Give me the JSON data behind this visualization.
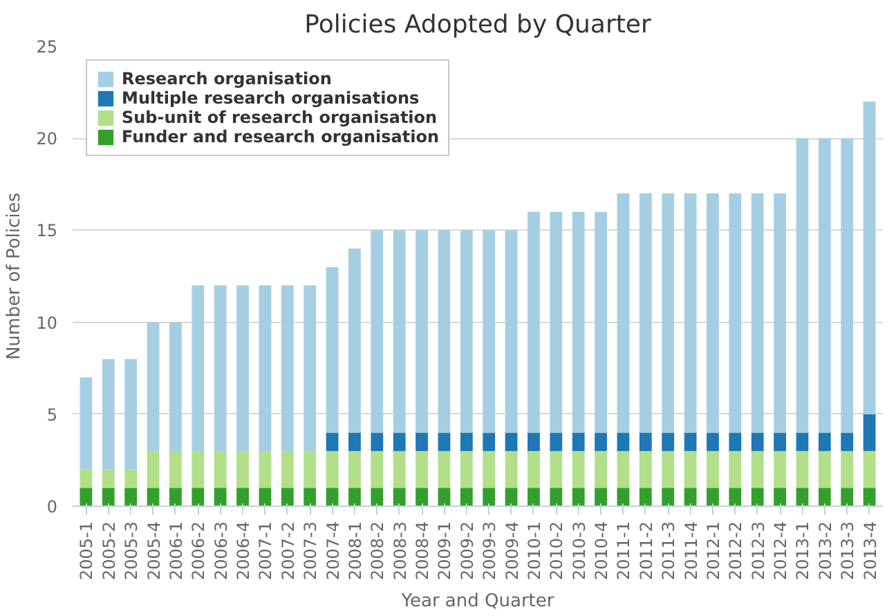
{
  "chart_data": {
    "type": "bar",
    "stacked": true,
    "title": "Policies Adopted by Quarter",
    "xlabel": "Year and Quarter",
    "ylabel": "Number of Policies",
    "categories": [
      "2005-1",
      "2005-2",
      "2005-3",
      "2005-4",
      "2006-1",
      "2006-2",
      "2006-3",
      "2006-4",
      "2007-1",
      "2007-2",
      "2007-3",
      "2007-4",
      "2008-1",
      "2008-2",
      "2008-3",
      "2008-4",
      "2009-1",
      "2009-2",
      "2009-3",
      "2009-4",
      "2010-1",
      "2010-2",
      "2010-3",
      "2010-4",
      "2011-1",
      "2011-2",
      "2011-3",
      "2011-4",
      "2012-1",
      "2012-2",
      "2012-3",
      "2012-4",
      "2013-1",
      "2013-2",
      "2013-3",
      "2013-4"
    ],
    "series": [
      {
        "name": "Funder and research organisation",
        "color": "#33a02c",
        "values": [
          1,
          1,
          1,
          1,
          1,
          1,
          1,
          1,
          1,
          1,
          1,
          1,
          1,
          1,
          1,
          1,
          1,
          1,
          1,
          1,
          1,
          1,
          1,
          1,
          1,
          1,
          1,
          1,
          1,
          1,
          1,
          1,
          1,
          1,
          1,
          1
        ]
      },
      {
        "name": "Sub-unit of research organisation",
        "color": "#b2df8a",
        "values": [
          1,
          1,
          1,
          2,
          2,
          2,
          2,
          2,
          2,
          2,
          2,
          2,
          2,
          2,
          2,
          2,
          2,
          2,
          2,
          2,
          2,
          2,
          2,
          2,
          2,
          2,
          2,
          2,
          2,
          2,
          2,
          2,
          2,
          2,
          2,
          2
        ]
      },
      {
        "name": "Multiple research organisations",
        "color": "#1f78b4",
        "values": [
          0,
          0,
          0,
          0,
          0,
          0,
          0,
          0,
          0,
          0,
          0,
          1,
          1,
          1,
          1,
          1,
          1,
          1,
          1,
          1,
          1,
          1,
          1,
          1,
          1,
          1,
          1,
          1,
          1,
          1,
          1,
          1,
          1,
          1,
          1,
          2
        ]
      },
      {
        "name": "Research organisation",
        "color": "#a6cee3",
        "values": [
          5,
          6,
          6,
          7,
          7,
          9,
          9,
          9,
          9,
          9,
          9,
          9,
          10,
          11,
          11,
          11,
          11,
          11,
          11,
          11,
          12,
          12,
          12,
          12,
          13,
          13,
          13,
          13,
          13,
          13,
          13,
          13,
          16,
          16,
          16,
          17
        ]
      }
    ],
    "ylim": [
      0,
      25
    ],
    "yticks": [
      0,
      5,
      10,
      15,
      20,
      25
    ],
    "grid": "y",
    "legend": "top left"
  }
}
